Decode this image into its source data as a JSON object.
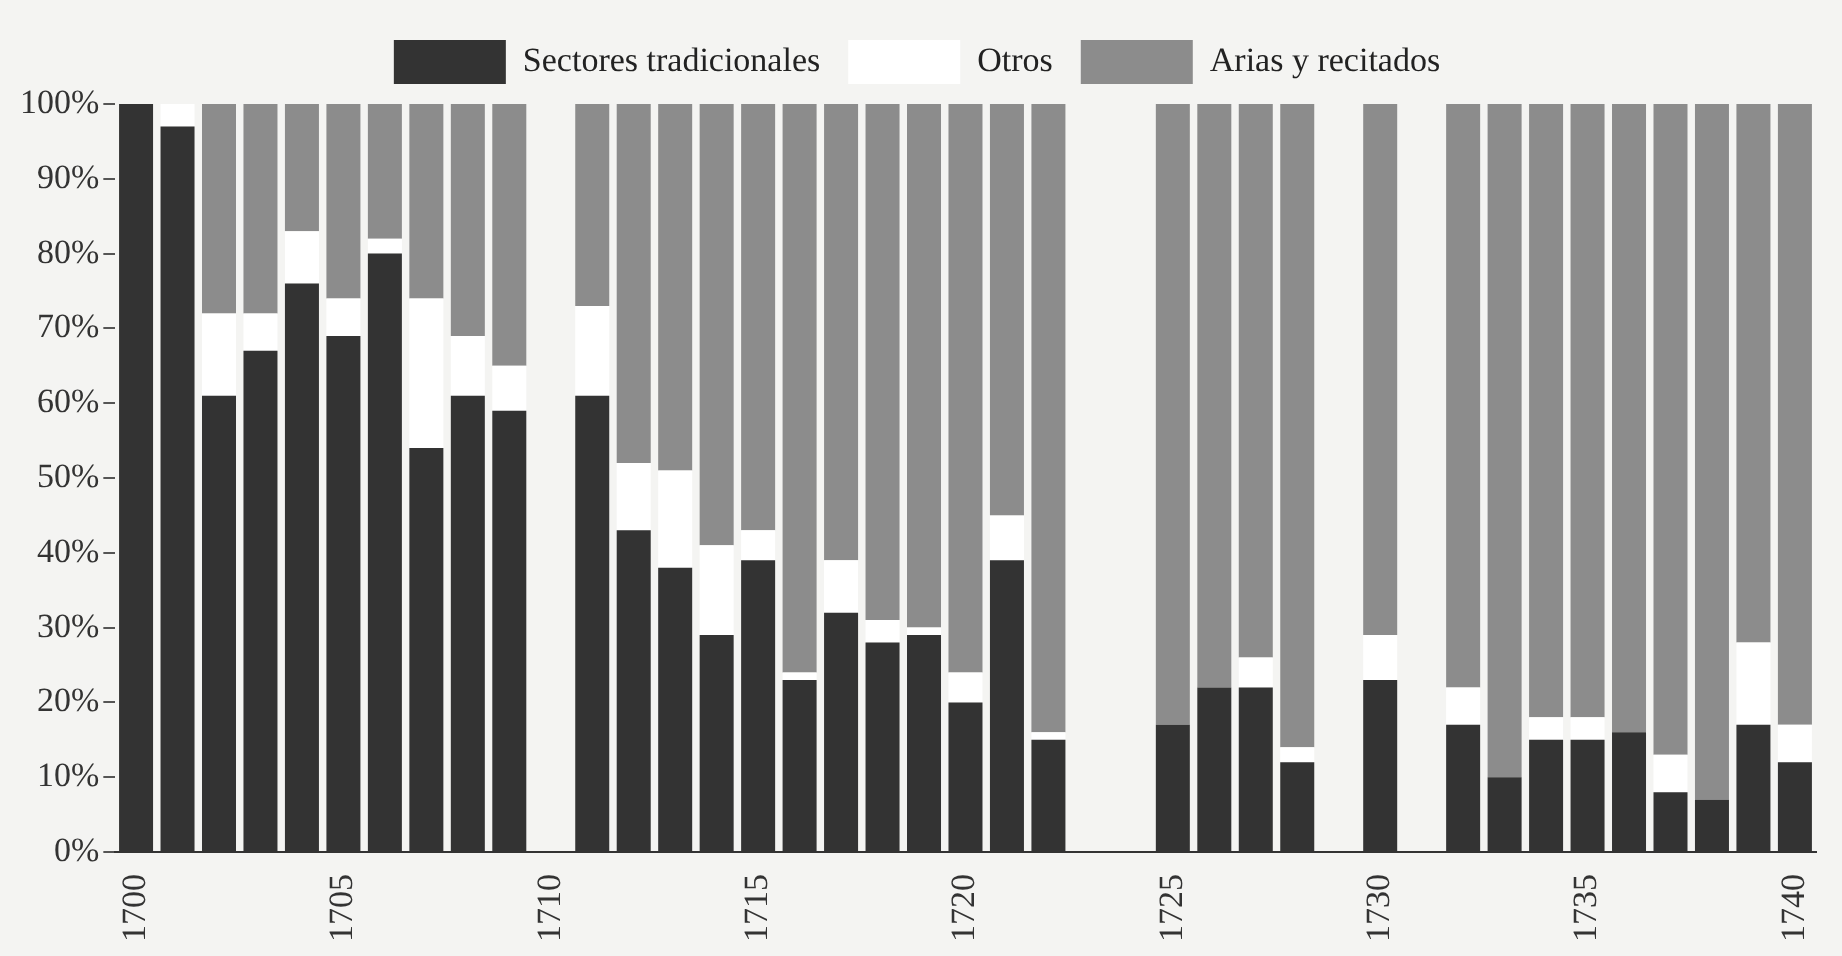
{
  "chart_data": {
    "type": "bar",
    "stacked": true,
    "legend": "top",
    "grid": false,
    "categories": [
      "1700",
      null,
      null,
      null,
      null,
      "1705",
      null,
      null,
      null,
      null,
      "1710",
      null,
      null,
      null,
      null,
      "1715",
      null,
      null,
      null,
      null,
      "1720",
      null,
      null,
      null,
      null,
      "1725",
      null,
      null,
      null,
      null,
      "1730",
      null,
      null,
      null,
      null,
      "1735",
      null,
      null,
      null,
      null,
      "1740"
    ],
    "series": [
      {
        "name": "Sectores tradicionales",
        "color": "#333333",
        "values": [
          100,
          97,
          61,
          67,
          76,
          69,
          80,
          54,
          61,
          59,
          null,
          61,
          43,
          38,
          29,
          39,
          23,
          32,
          28,
          29,
          20,
          39,
          15,
          null,
          null,
          17,
          22,
          22,
          12,
          null,
          23,
          null,
          17,
          10,
          15,
          15,
          16,
          8,
          7,
          17,
          12
        ]
      },
      {
        "name": "Otros",
        "color": "#ffffff",
        "values": [
          0,
          3,
          11,
          5,
          7,
          5,
          2,
          20,
          8,
          6,
          null,
          12,
          9,
          13,
          12,
          4,
          1,
          7,
          3,
          1,
          4,
          6,
          1,
          null,
          null,
          0,
          0,
          4,
          2,
          null,
          6,
          null,
          5,
          0,
          3,
          3,
          0,
          5,
          0,
          11,
          5
        ]
      },
      {
        "name": "Arias y recitados",
        "color": "#8c8c8c",
        "values": [
          0,
          0,
          28,
          28,
          17,
          26,
          18,
          26,
          31,
          35,
          null,
          27,
          48,
          49,
          59,
          57,
          76,
          61,
          69,
          70,
          76,
          55,
          84,
          null,
          null,
          83,
          78,
          74,
          86,
          null,
          71,
          null,
          78,
          90,
          82,
          82,
          84,
          87,
          93,
          72,
          83
        ]
      }
    ],
    "ylim": [
      0,
      100
    ],
    "yticks": [
      {
        "value": 0,
        "label": "0%"
      },
      {
        "value": 10,
        "label": "10%"
      },
      {
        "value": 20,
        "label": "20%"
      },
      {
        "value": 30,
        "label": "30%"
      },
      {
        "value": 40,
        "label": "40%"
      },
      {
        "value": 50,
        "label": "50%"
      },
      {
        "value": 60,
        "label": "60%"
      },
      {
        "value": 70,
        "label": "70%"
      },
      {
        "value": 80,
        "label": "80%"
      },
      {
        "value": 90,
        "label": "90%"
      },
      {
        "value": 100,
        "label": "100%"
      }
    ]
  }
}
